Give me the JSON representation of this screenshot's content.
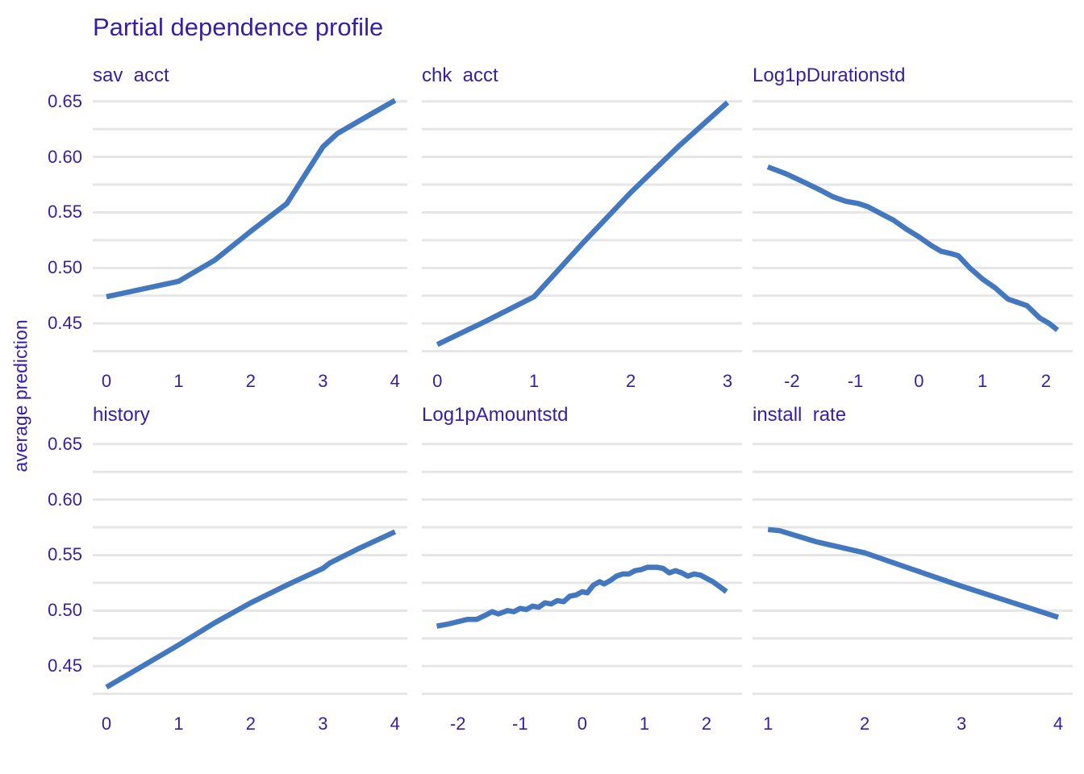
{
  "title": "Partial dependence profile",
  "y_axis_label": "average prediction",
  "colors": {
    "text": "#371ea3",
    "line": "#4378bf",
    "gridline": "#e6e6e6",
    "background": "#ffffff"
  },
  "y_axis": {
    "ylim": [
      0.416,
      0.66
    ],
    "gridlines": [
      0.425,
      0.45,
      0.475,
      0.5,
      0.525,
      0.55,
      0.575,
      0.6,
      0.625,
      0.65
    ],
    "ticks": [
      {
        "value": 0.65,
        "label": "0.65"
      },
      {
        "value": 0.6,
        "label": "0.60"
      },
      {
        "value": 0.55,
        "label": "0.55"
      },
      {
        "value": 0.5,
        "label": "0.50"
      },
      {
        "value": 0.45,
        "label": "0.45"
      }
    ]
  },
  "chart_data": [
    {
      "type": "line",
      "facet": "sav  acct",
      "xlim": [
        -0.19,
        4.17
      ],
      "ylim": [
        0.416,
        0.66
      ],
      "x_ticks": [
        {
          "value": 0,
          "label": "0"
        },
        {
          "value": 1,
          "label": "1"
        },
        {
          "value": 2,
          "label": "2"
        },
        {
          "value": 3,
          "label": "3"
        },
        {
          "value": 4,
          "label": "4"
        }
      ],
      "points": [
        [
          0,
          0.474
        ],
        [
          0.5,
          0.481
        ],
        [
          1,
          0.488
        ],
        [
          1.5,
          0.507
        ],
        [
          2,
          0.533
        ],
        [
          2.5,
          0.558
        ],
        [
          3,
          0.609
        ],
        [
          3.2,
          0.621
        ],
        [
          3.6,
          0.636
        ],
        [
          4,
          0.651
        ]
      ]
    },
    {
      "type": "line",
      "facet": "chk  acct",
      "xlim": [
        -0.16,
        3.15
      ],
      "ylim": [
        0.416,
        0.66
      ],
      "x_ticks": [
        {
          "value": 0,
          "label": "0"
        },
        {
          "value": 1,
          "label": "1"
        },
        {
          "value": 2,
          "label": "2"
        },
        {
          "value": 3,
          "label": "3"
        }
      ],
      "points": [
        [
          0,
          0.431
        ],
        [
          0.5,
          0.452
        ],
        [
          1,
          0.474
        ],
        [
          1.5,
          0.522
        ],
        [
          2,
          0.568
        ],
        [
          2.5,
          0.61
        ],
        [
          3,
          0.649
        ]
      ]
    },
    {
      "type": "line",
      "facet": "Log1pDurationstd",
      "xlim": [
        -2.62,
        2.42
      ],
      "ylim": [
        0.416,
        0.66
      ],
      "x_ticks": [
        {
          "value": -2,
          "label": "-2"
        },
        {
          "value": -1,
          "label": "-1"
        },
        {
          "value": 0,
          "label": "0"
        },
        {
          "value": 1,
          "label": "1"
        },
        {
          "value": 2,
          "label": "2"
        }
      ],
      "points": [
        [
          -2.38,
          0.591
        ],
        [
          -2.1,
          0.585
        ],
        [
          -1.8,
          0.577
        ],
        [
          -1.55,
          0.57
        ],
        [
          -1.35,
          0.564
        ],
        [
          -1.15,
          0.56
        ],
        [
          -0.95,
          0.558
        ],
        [
          -0.8,
          0.555
        ],
        [
          -0.6,
          0.549
        ],
        [
          -0.4,
          0.543
        ],
        [
          -0.2,
          0.535
        ],
        [
          0,
          0.528
        ],
        [
          0.2,
          0.52
        ],
        [
          0.35,
          0.515
        ],
        [
          0.5,
          0.513
        ],
        [
          0.62,
          0.511
        ],
        [
          0.8,
          0.5
        ],
        [
          1,
          0.49
        ],
        [
          1.2,
          0.482
        ],
        [
          1.4,
          0.472
        ],
        [
          1.55,
          0.469
        ],
        [
          1.7,
          0.466
        ],
        [
          1.9,
          0.455
        ],
        [
          2.05,
          0.45
        ],
        [
          2.18,
          0.444
        ]
      ]
    },
    {
      "type": "line",
      "facet": "history",
      "xlim": [
        -0.19,
        4.17
      ],
      "ylim": [
        0.416,
        0.66
      ],
      "x_ticks": [
        {
          "value": 0,
          "label": "0"
        },
        {
          "value": 1,
          "label": "1"
        },
        {
          "value": 2,
          "label": "2"
        },
        {
          "value": 3,
          "label": "3"
        },
        {
          "value": 4,
          "label": "4"
        }
      ],
      "points": [
        [
          0,
          0.431
        ],
        [
          0.5,
          0.45
        ],
        [
          1,
          0.469
        ],
        [
          1.5,
          0.489
        ],
        [
          2,
          0.507
        ],
        [
          2.5,
          0.523
        ],
        [
          3,
          0.538
        ],
        [
          3.1,
          0.543
        ],
        [
          3.5,
          0.556
        ],
        [
          4,
          0.571
        ]
      ]
    },
    {
      "type": "line",
      "facet": "Log1pAmountstd",
      "xlim": [
        -2.58,
        2.57
      ],
      "ylim": [
        0.416,
        0.66
      ],
      "x_ticks": [
        {
          "value": -2,
          "label": "-2"
        },
        {
          "value": -1,
          "label": "-1"
        },
        {
          "value": 0,
          "label": "0"
        },
        {
          "value": 1,
          "label": "1"
        },
        {
          "value": 2,
          "label": "2"
        }
      ],
      "points": [
        [
          -2.34,
          0.486
        ],
        [
          -2.15,
          0.488
        ],
        [
          -2,
          0.49
        ],
        [
          -1.85,
          0.492
        ],
        [
          -1.7,
          0.492
        ],
        [
          -1.55,
          0.496
        ],
        [
          -1.45,
          0.499
        ],
        [
          -1.35,
          0.497
        ],
        [
          -1.2,
          0.5
        ],
        [
          -1.1,
          0.499
        ],
        [
          -1,
          0.502
        ],
        [
          -0.9,
          0.501
        ],
        [
          -0.8,
          0.504
        ],
        [
          -0.7,
          0.503
        ],
        [
          -0.6,
          0.507
        ],
        [
          -0.5,
          0.506
        ],
        [
          -0.4,
          0.509
        ],
        [
          -0.3,
          0.508
        ],
        [
          -0.2,
          0.513
        ],
        [
          -0.1,
          0.514
        ],
        [
          0,
          0.517
        ],
        [
          0.08,
          0.516
        ],
        [
          0.18,
          0.523
        ],
        [
          0.28,
          0.526
        ],
        [
          0.35,
          0.524
        ],
        [
          0.45,
          0.527
        ],
        [
          0.55,
          0.531
        ],
        [
          0.65,
          0.533
        ],
        [
          0.75,
          0.533
        ],
        [
          0.85,
          0.536
        ],
        [
          0.95,
          0.537
        ],
        [
          1.05,
          0.539
        ],
        [
          1.2,
          0.539
        ],
        [
          1.3,
          0.538
        ],
        [
          1.4,
          0.534
        ],
        [
          1.5,
          0.536
        ],
        [
          1.6,
          0.534
        ],
        [
          1.7,
          0.531
        ],
        [
          1.8,
          0.533
        ],
        [
          1.9,
          0.532
        ],
        [
          2,
          0.529
        ],
        [
          2.1,
          0.526
        ],
        [
          2.2,
          0.522
        ],
        [
          2.32,
          0.517
        ]
      ]
    },
    {
      "type": "line",
      "facet": "install  rate",
      "xlim": [
        0.84,
        4.15
      ],
      "ylim": [
        0.416,
        0.66
      ],
      "x_ticks": [
        {
          "value": 1,
          "label": "1"
        },
        {
          "value": 2,
          "label": "2"
        },
        {
          "value": 3,
          "label": "3"
        },
        {
          "value": 4,
          "label": "4"
        }
      ],
      "points": [
        [
          1,
          0.573
        ],
        [
          1.12,
          0.572
        ],
        [
          1.5,
          0.562
        ],
        [
          2,
          0.552
        ],
        [
          2.5,
          0.537
        ],
        [
          3,
          0.522
        ],
        [
          3.5,
          0.508
        ],
        [
          4,
          0.494
        ]
      ]
    }
  ]
}
